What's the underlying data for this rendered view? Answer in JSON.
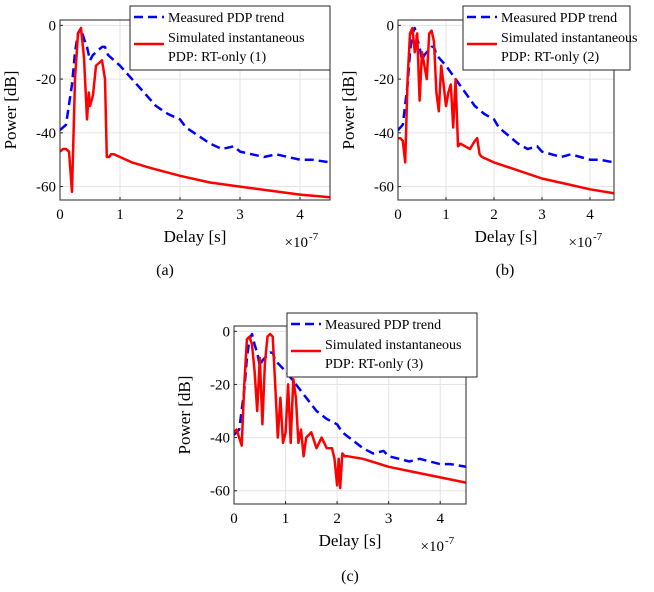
{
  "chart_data": [
    {
      "type": "line",
      "caption": "(a)",
      "xlabel": "Delay [s]",
      "ylabel": "Power [dB]",
      "x_multiplier": "×10",
      "x_multiplier_exp": "-7",
      "xlim": [
        0,
        4.5
      ],
      "ylim": [
        -65,
        2
      ],
      "xticks": [
        0,
        1,
        2,
        3,
        4
      ],
      "yticks": [
        0,
        -20,
        -40,
        -60
      ],
      "grid": true,
      "legend_position": "top-right",
      "series": [
        {
          "name": "Measured PDP trend",
          "color": "#0000ff",
          "style": "dashed",
          "x": [
            0,
            0.1,
            0.2,
            0.25,
            0.3,
            0.35,
            0.4,
            0.45,
            0.5,
            0.55,
            0.6,
            0.7,
            0.75,
            0.8,
            0.9,
            1.0,
            1.2,
            1.4,
            1.6,
            1.8,
            2.0,
            2.1,
            2.3,
            2.5,
            2.7,
            2.9,
            3.0,
            3.2,
            3.4,
            3.6,
            3.8,
            4.0,
            4.2,
            4.5
          ],
          "y": [
            -39,
            -37,
            -22,
            -10,
            -3,
            -1,
            -5,
            -8,
            -13,
            -11,
            -10,
            -8,
            -8,
            -11,
            -13,
            -15,
            -20,
            -25,
            -30,
            -33,
            -35,
            -38,
            -41,
            -44,
            -46,
            -45,
            -47,
            -48,
            -49,
            -48,
            -49,
            -50,
            -50,
            -51
          ]
        },
        {
          "name": "Simulated instantaneous PDP: RT-only (1)",
          "color": "#ff0000",
          "style": "solid",
          "x": [
            0,
            0.05,
            0.1,
            0.15,
            0.2,
            0.25,
            0.3,
            0.35,
            0.4,
            0.45,
            0.48,
            0.5,
            0.55,
            0.6,
            0.65,
            0.7,
            0.75,
            0.78,
            0.82,
            0.85,
            0.9,
            1.0,
            1.2,
            1.5,
            2.0,
            2.5,
            3.0,
            3.5,
            4.0,
            4.5
          ],
          "y": [
            -47,
            -46,
            -46,
            -47,
            -62,
            -20,
            -3,
            -1,
            -12,
            -35,
            -25,
            -30,
            -26,
            -15,
            -14,
            -13,
            -20,
            -49,
            -49,
            -48,
            -48,
            -49,
            -51,
            -53,
            -56,
            -58.5,
            -60,
            -61.5,
            -63,
            -64
          ]
        }
      ]
    },
    {
      "type": "line",
      "caption": "(b)",
      "xlabel": "Delay [s]",
      "ylabel": "Power [dB]",
      "x_multiplier": "×10",
      "x_multiplier_exp": "-7",
      "xlim": [
        0,
        4.5
      ],
      "ylim": [
        -65,
        2
      ],
      "xticks": [
        0,
        1,
        2,
        3,
        4
      ],
      "yticks": [
        0,
        -20,
        -40,
        -60
      ],
      "grid": true,
      "legend_position": "top-right",
      "series": [
        {
          "name": "Measured PDP trend",
          "color": "#0000ff",
          "style": "dashed",
          "x": [
            0,
            0.1,
            0.2,
            0.25,
            0.3,
            0.35,
            0.4,
            0.45,
            0.5,
            0.55,
            0.6,
            0.7,
            0.75,
            0.8,
            0.9,
            1.0,
            1.2,
            1.4,
            1.6,
            1.8,
            2.0,
            2.1,
            2.3,
            2.5,
            2.7,
            2.9,
            3.0,
            3.2,
            3.4,
            3.6,
            3.8,
            4.0,
            4.2,
            4.5
          ],
          "y": [
            -39,
            -37,
            -22,
            -10,
            -3,
            -1,
            -5,
            -8,
            -13,
            -11,
            -10,
            -8,
            -8,
            -11,
            -13,
            -15,
            -20,
            -25,
            -30,
            -33,
            -35,
            -38,
            -41,
            -44,
            -46,
            -45,
            -47,
            -48,
            -49,
            -48,
            -49,
            -50,
            -50,
            -51
          ]
        },
        {
          "name": "Simulated instantaneous PDP: RT-only (2)",
          "color": "#ff0000",
          "style": "solid",
          "x": [
            0,
            0.05,
            0.1,
            0.15,
            0.2,
            0.25,
            0.3,
            0.35,
            0.4,
            0.45,
            0.5,
            0.55,
            0.6,
            0.65,
            0.7,
            0.75,
            0.8,
            0.85,
            0.9,
            0.95,
            1.0,
            1.05,
            1.1,
            1.15,
            1.2,
            1.25,
            1.3,
            1.4,
            1.5,
            1.6,
            1.65,
            1.7,
            1.75,
            2.0,
            2.5,
            3.0,
            3.5,
            4.0,
            4.5
          ],
          "y": [
            -42,
            -42,
            -43,
            -51,
            -20,
            -3,
            -1,
            -10,
            -3,
            -28,
            -10,
            -15,
            -20,
            -3,
            -2,
            -6,
            -25,
            -32,
            -15,
            -22,
            -30,
            -25,
            -22,
            -38,
            -20,
            -45,
            -44,
            -45,
            -46,
            -43,
            -42,
            -48,
            -49,
            -51,
            -54,
            -57,
            -59,
            -61,
            -62.5
          ]
        }
      ]
    },
    {
      "type": "line",
      "caption": "(c)",
      "xlabel": "Delay [s]",
      "ylabel": "Power [dB]",
      "x_multiplier": "×10",
      "x_multiplier_exp": "-7",
      "xlim": [
        0,
        4.5
      ],
      "ylim": [
        -65,
        2
      ],
      "xticks": [
        0,
        1,
        2,
        3,
        4
      ],
      "yticks": [
        0,
        -20,
        -40,
        -60
      ],
      "grid": true,
      "legend_position": "top-right",
      "series": [
        {
          "name": "Measured PDP trend",
          "color": "#0000ff",
          "style": "dashed",
          "x": [
            0,
            0.1,
            0.2,
            0.25,
            0.3,
            0.35,
            0.4,
            0.45,
            0.5,
            0.55,
            0.6,
            0.7,
            0.75,
            0.8,
            0.9,
            1.0,
            1.2,
            1.4,
            1.6,
            1.8,
            2.0,
            2.1,
            2.3,
            2.5,
            2.7,
            2.9,
            3.0,
            3.2,
            3.4,
            3.6,
            3.8,
            4.0,
            4.2,
            4.5
          ],
          "y": [
            -39,
            -37,
            -22,
            -10,
            -3,
            -1,
            -5,
            -8,
            -13,
            -11,
            -10,
            -8,
            -8,
            -11,
            -13,
            -15,
            -20,
            -25,
            -30,
            -33,
            -35,
            -38,
            -41,
            -44,
            -46,
            -45,
            -47,
            -48,
            -49,
            -48,
            -49,
            -50,
            -50,
            -51
          ]
        },
        {
          "name": "Simulated instantaneous PDP: RT-only (3)",
          "color": "#ff0000",
          "style": "solid",
          "x": [
            0,
            0.05,
            0.1,
            0.15,
            0.2,
            0.25,
            0.3,
            0.35,
            0.4,
            0.45,
            0.5,
            0.55,
            0.6,
            0.65,
            0.7,
            0.75,
            0.8,
            0.85,
            0.9,
            0.95,
            1.0,
            1.05,
            1.1,
            1.15,
            1.2,
            1.25,
            1.3,
            1.35,
            1.4,
            1.5,
            1.6,
            1.7,
            1.8,
            1.9,
            1.95,
            2.0,
            2.03,
            2.06,
            2.1,
            2.15,
            2.2,
            2.5,
            3.0,
            3.5,
            4.0,
            4.5
          ],
          "y": [
            -38,
            -37,
            -40,
            -43,
            -20,
            -3,
            -2,
            -5,
            -15,
            -30,
            -10,
            -35,
            -12,
            -2,
            -1,
            -2,
            -20,
            -40,
            -25,
            -42,
            -38,
            -20,
            -42,
            -18,
            -25,
            -42,
            -37,
            -47,
            -40,
            -38,
            -44,
            -40,
            -44,
            -44,
            -48,
            -58,
            -48,
            -59,
            -46,
            -47,
            -47,
            -48,
            -51,
            -53,
            -55,
            -57
          ]
        }
      ]
    }
  ]
}
